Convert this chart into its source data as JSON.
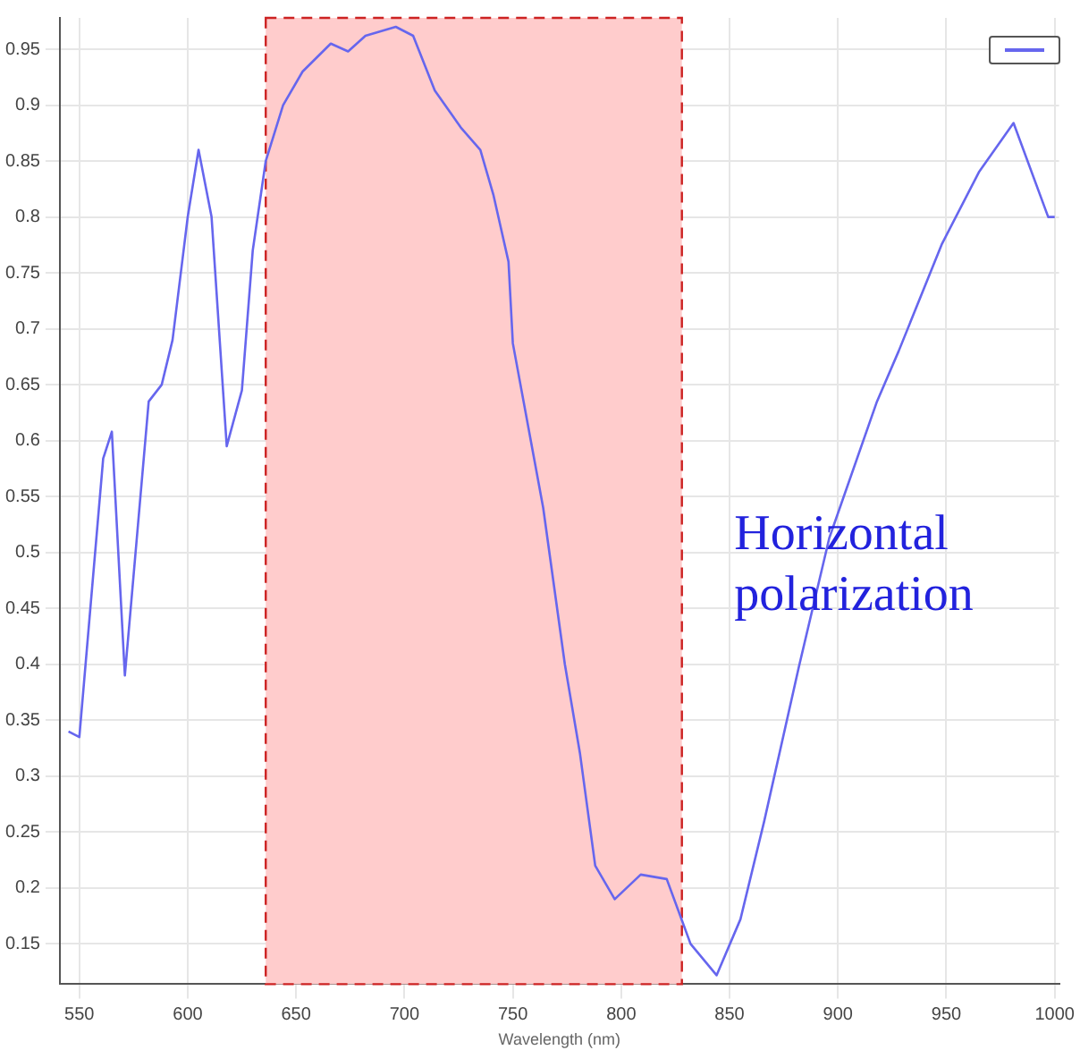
{
  "chart_data": {
    "type": "line",
    "xlabel": "Wavelength (nm)",
    "x": [
      545,
      550,
      561,
      565,
      571,
      582,
      588,
      593,
      600,
      605,
      611,
      618,
      625,
      630,
      636,
      644,
      653,
      666,
      674,
      682,
      696,
      704,
      714,
      726,
      735,
      741,
      748,
      750,
      764,
      774,
      781,
      788,
      797,
      809,
      821,
      832,
      844,
      855,
      866,
      882,
      896,
      918,
      928,
      948,
      965,
      981,
      997,
      1000
    ],
    "series": [
      {
        "color": "#6666ee",
        "values": [
          0.34,
          0.335,
          0.584,
          0.608,
          0.39,
          0.635,
          0.65,
          0.69,
          0.8,
          0.86,
          0.8,
          0.595,
          0.645,
          0.77,
          0.85,
          0.9,
          0.93,
          0.955,
          0.948,
          0.962,
          0.97,
          0.962,
          0.913,
          0.88,
          0.86,
          0.82,
          0.76,
          0.687,
          0.54,
          0.4,
          0.32,
          0.22,
          0.19,
          0.212,
          0.208,
          0.15,
          0.122,
          0.172,
          0.26,
          0.398,
          0.513,
          0.635,
          0.68,
          0.776,
          0.84,
          0.884,
          0.8,
          0.8
        ]
      }
    ],
    "xlim": [
      541,
      1002
    ],
    "ylim": [
      0.114,
      0.978
    ],
    "xticks": [
      550,
      600,
      650,
      700,
      750,
      800,
      850,
      900,
      950,
      1000
    ],
    "yticks": [
      0.15,
      0.2,
      0.25,
      0.3,
      0.35,
      0.4,
      0.45,
      0.5,
      0.55,
      0.6,
      0.65,
      0.7,
      0.75,
      0.8,
      0.85,
      0.9,
      0.95
    ],
    "bands": [
      {
        "axis": "x",
        "from": 636,
        "to": 828,
        "color": "#ffcccc"
      }
    ],
    "annotations": [
      "Horizontal polarization"
    ],
    "grid": true,
    "legend": false,
    "marker": "none",
    "line_style": "solid"
  }
}
